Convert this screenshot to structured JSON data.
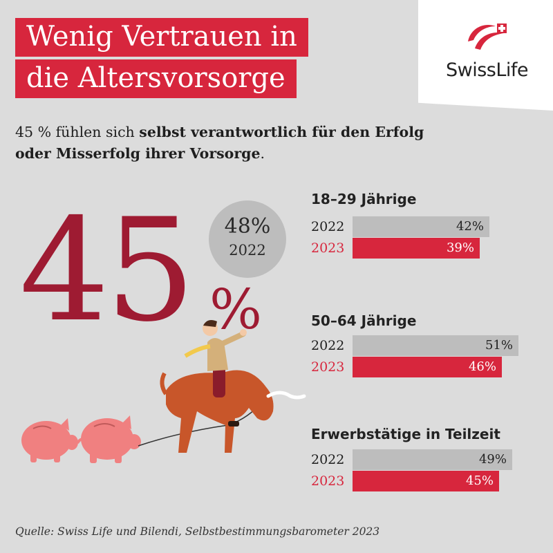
{
  "title_lines": [
    "Wenig Vertrauen in",
    "die Altersvorsorge"
  ],
  "logo": {
    "text": "SwissLife",
    "mark": "swisslife-logo-icon",
    "color": "#d7263d"
  },
  "subtitle": {
    "prefix": "45 % fühlen sich ",
    "bold": "selbst verantwortlich für den Erfolg oder Misserfolg ihrer Vorsorge",
    "suffix": "."
  },
  "headline": {
    "value": "45",
    "unit": "%",
    "color": "#9e1b32"
  },
  "comparison": {
    "value": "48%",
    "year": "2022"
  },
  "illustration": "man-riding-bull-pulling-piggy-banks-icon",
  "chart_data": {
    "type": "bar",
    "orientation": "horizontal",
    "xlim": [
      0,
      51
    ],
    "series_colors": {
      "2022": "#bdbdbd",
      "2023": "#d7263d"
    },
    "groups": [
      {
        "title": "18–29 Jährige",
        "rows": [
          {
            "year": "2022",
            "value": 42,
            "label": "42%"
          },
          {
            "year": "2023",
            "value": 39,
            "label": "39%"
          }
        ]
      },
      {
        "title": "50–64 Jährige",
        "rows": [
          {
            "year": "2022",
            "value": 51,
            "label": "51%"
          },
          {
            "year": "2023",
            "value": 46,
            "label": "46%"
          }
        ]
      },
      {
        "title": "Erwerbstätige in Teilzeit",
        "rows": [
          {
            "year": "2022",
            "value": 49,
            "label": "49%"
          },
          {
            "year": "2023",
            "value": 45,
            "label": "45%"
          }
        ]
      }
    ]
  },
  "source": "Quelle: Swiss Life und Bilendi, Selbstbestimmungsbarometer 2023"
}
